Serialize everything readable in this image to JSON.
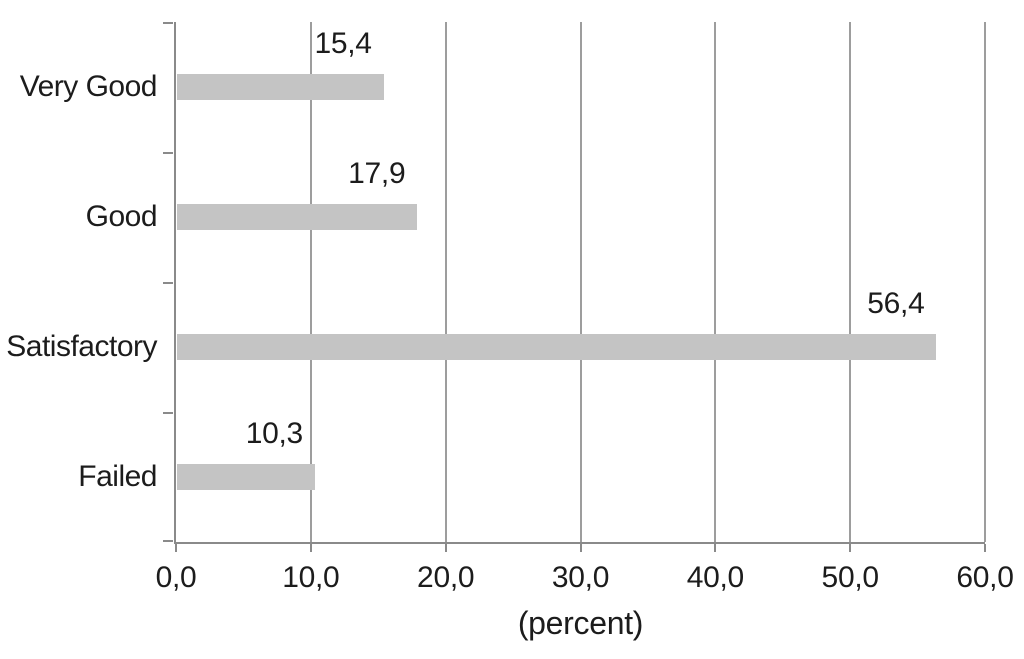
{
  "chart_data": {
    "type": "bar",
    "orientation": "horizontal",
    "title": "",
    "xlabel": "(percent)",
    "categories": [
      "Very Good",
      "Good",
      "Satisfactory",
      "Failed"
    ],
    "values": [
      15.4,
      17.9,
      56.4,
      10.3
    ],
    "value_labels": [
      "15,4",
      "17,9",
      "56,4",
      "10,3"
    ],
    "x_tick_labels": [
      "0,0",
      "10,0",
      "20,0",
      "30,0",
      "40,0",
      "50,0",
      "60,0"
    ],
    "xlim": [
      0,
      60
    ],
    "x_tick_step": 10,
    "grid": "vertical-gridlines-only",
    "legend": "none",
    "colors": {
      "bar_fill": "#c4c4c4",
      "gridline": "#9d9d9d",
      "axis_line": "#8a8a8a",
      "tick": "#8a8a8a",
      "text": "#1c1c1c",
      "background": "#ffffff"
    }
  }
}
